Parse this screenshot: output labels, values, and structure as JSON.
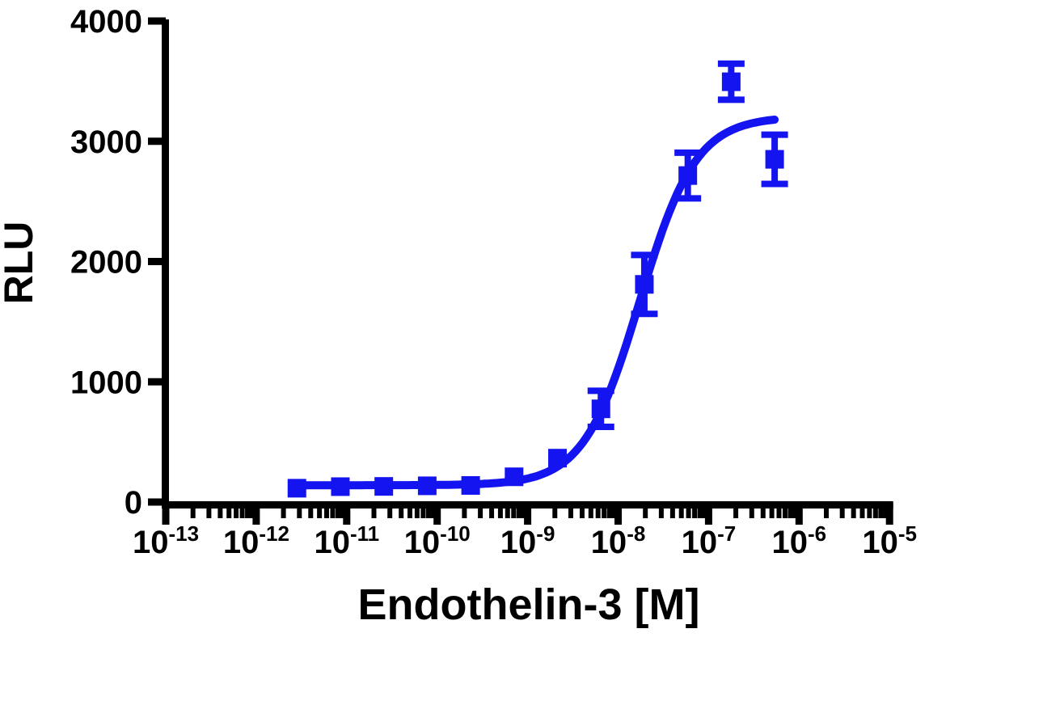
{
  "page": {
    "background": "#ffffff"
  },
  "chart_data": {
    "type": "scatter",
    "subtype": "dose-response-curve",
    "title": "",
    "xlabel": "Endothelin-3 [M]",
    "ylabel": "RLU",
    "x_scale": "log10",
    "xlim_log10": [
      -13,
      -5
    ],
    "ylim": [
      0,
      4000
    ],
    "y_ticks": [
      0,
      1000,
      2000,
      3000,
      4000
    ],
    "x_tick_base": "10",
    "x_tick_exponents": [
      -13,
      -12,
      -11,
      -10,
      -9,
      -8,
      -7,
      -6,
      -5
    ],
    "x_minor_ticks": "log-positions-2-through-9-each-decade",
    "grid": false,
    "legend": null,
    "axis_color": "#000000",
    "accent_color": "#1414f0",
    "series": [
      {
        "name": "Endothelin-3",
        "marker": "filled-square",
        "color": "#1414f0",
        "points": [
          {
            "conc_m": 2.8e-12,
            "log10_x": -11.55,
            "rlu": 115,
            "err": 0
          },
          {
            "conc_m": 8.5e-12,
            "log10_x": -11.07,
            "rlu": 128,
            "err": 0
          },
          {
            "conc_m": 2.6e-11,
            "log10_x": -10.59,
            "rlu": 130,
            "err": 0
          },
          {
            "conc_m": 7.8e-11,
            "log10_x": -10.11,
            "rlu": 135,
            "err": 0
          },
          {
            "conc_m": 2.3e-10,
            "log10_x": -9.63,
            "rlu": 138,
            "err": 0
          },
          {
            "conc_m": 7.1e-10,
            "log10_x": -9.15,
            "rlu": 210,
            "err": 0
          },
          {
            "conc_m": 2.1e-09,
            "log10_x": -8.67,
            "rlu": 365,
            "err": 0
          },
          {
            "conc_m": 6.5e-09,
            "log10_x": -8.19,
            "rlu": 775,
            "err": 150
          },
          {
            "conc_m": 1.9e-08,
            "log10_x": -7.71,
            "rlu": 1810,
            "err": 245
          },
          {
            "conc_m": 5.9e-08,
            "log10_x": -7.23,
            "rlu": 2715,
            "err": 190
          },
          {
            "conc_m": 1.8e-07,
            "log10_x": -6.75,
            "rlu": 3495,
            "err": 150
          },
          {
            "conc_m": 5.4e-07,
            "log10_x": -6.27,
            "rlu": 2850,
            "err": 205
          }
        ]
      }
    ],
    "fit_curve": {
      "model": "four-parameter-logistic",
      "bottom_rlu": 140,
      "top_rlu": 3205,
      "log10_ec50": -7.76,
      "hill_slope": 1.4,
      "x_range_log10": [
        -11.55,
        -6.27
      ]
    }
  }
}
